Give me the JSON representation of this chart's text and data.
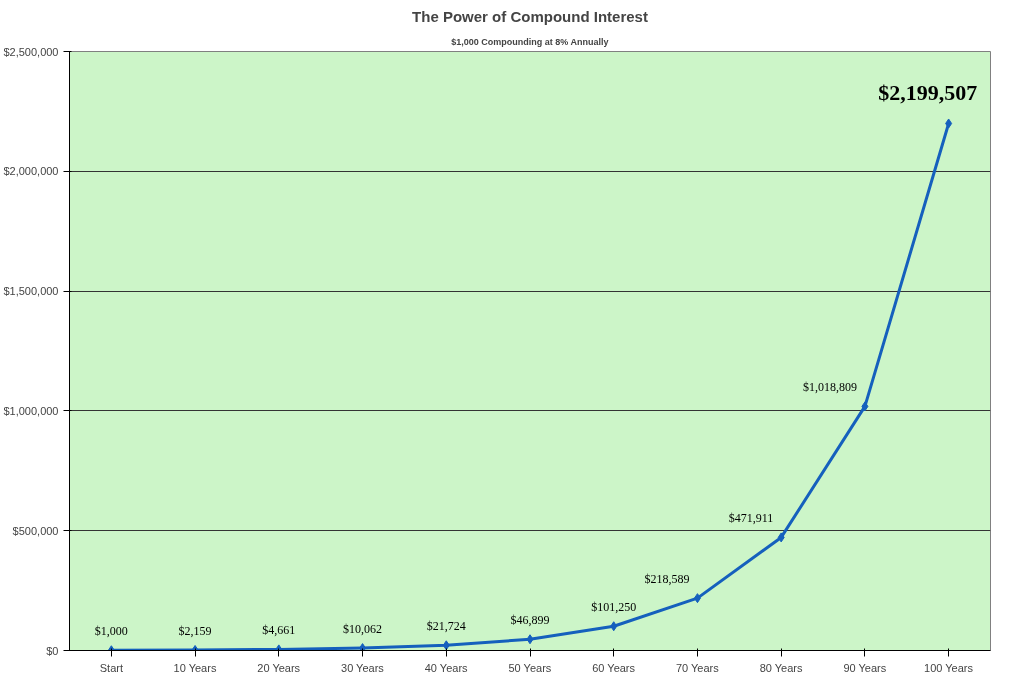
{
  "chart_data": {
    "type": "line",
    "title": "The Power of Compound Interest",
    "subtitle": "$1,000 Compounding at 8% Annually",
    "categories": [
      "Start",
      "10 Years",
      "20 Years",
      "30 Years",
      "40 Years",
      "50 Years",
      "60 Years",
      "70 Years",
      "80 Years",
      "90 Years",
      "100 Years"
    ],
    "series": [
      {
        "color": "#1560bd",
        "values": [
          1000,
          2159,
          4661,
          10062,
          21724,
          46899,
          101250,
          218589,
          471911,
          1018809,
          2199507
        ],
        "value_labels": [
          "$1,000",
          "$2,159",
          "$4,661",
          "$10,062",
          "$21,724",
          "$46,899",
          "$101,250",
          "$218,589",
          "$471,911",
          "$1,018,809",
          "$2,199,507"
        ]
      }
    ],
    "ylim": [
      0,
      2500000
    ],
    "yticks": [
      {
        "value": 0,
        "label": "$0"
      },
      {
        "value": 500000,
        "label": "$500,000"
      },
      {
        "value": 1000000,
        "label": "$1,000,000"
      },
      {
        "value": 1500000,
        "label": "$1,500,000"
      },
      {
        "value": 2000000,
        "label": "$2,000,000"
      },
      {
        "value": 2500000,
        "label": "$2,500,000"
      }
    ],
    "grid": "y",
    "marker": "diamond",
    "line_style": "solid"
  }
}
